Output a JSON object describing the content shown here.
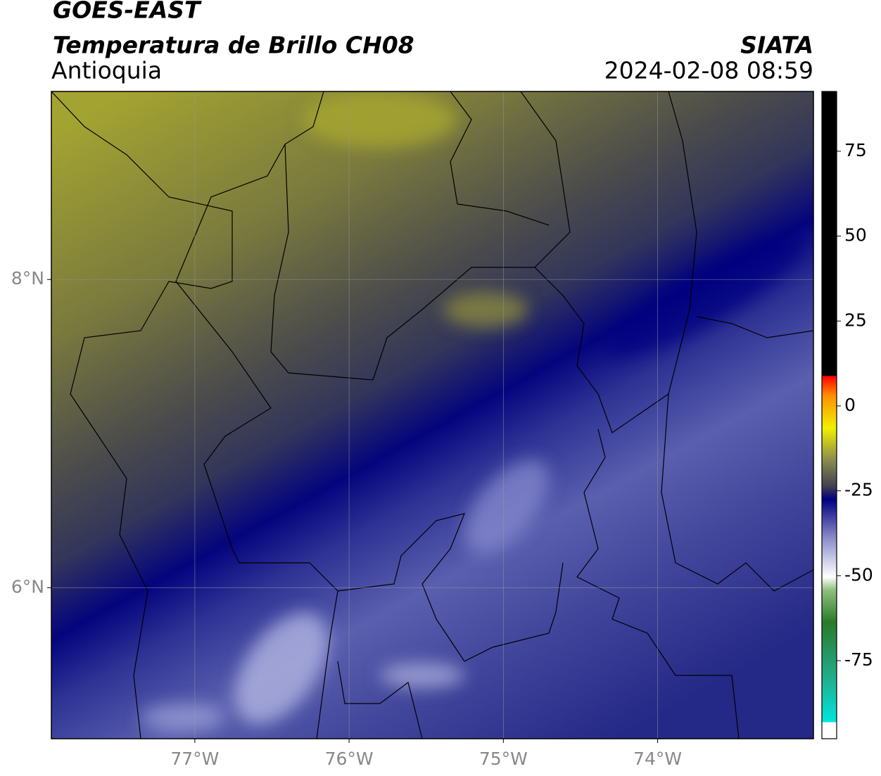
{
  "header": {
    "satellite": "GOES-EAST",
    "product": "Temperatura de Brillo CH08",
    "region": "Antioquia",
    "source": "SIATA",
    "timestamp": "2024-02-08 08:59"
  },
  "map": {
    "xlim": [
      -77.93,
      -72.99
    ],
    "ylim": [
      5.02,
      9.22
    ],
    "xticks": [
      {
        "value": -77,
        "label": "77°W"
      },
      {
        "value": -76,
        "label": "76°W"
      },
      {
        "value": -75,
        "label": "75°W"
      },
      {
        "value": -74,
        "label": "74°W"
      }
    ],
    "yticks": [
      {
        "value": 6,
        "label": "6°N"
      },
      {
        "value": 8,
        "label": "8°N"
      }
    ],
    "grid": true
  },
  "colorbar": {
    "lim": [
      -98,
      92.6
    ],
    "ticks": [
      75,
      50,
      25,
      0,
      -25,
      -50,
      -75
    ]
  }
}
